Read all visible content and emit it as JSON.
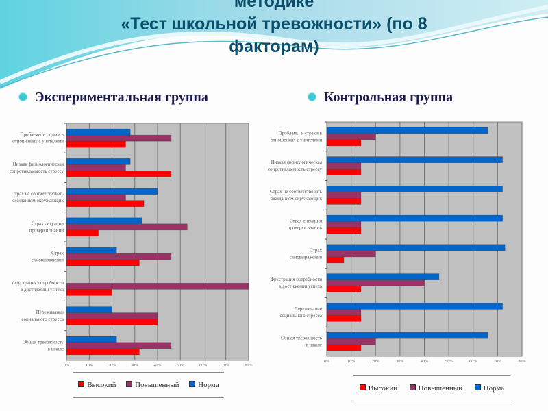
{
  "title_lines": [
    "методике",
    "«Тест школьной тревожности» (по 8",
    "факторам)"
  ],
  "groups": {
    "experimental": "Экспериментальная группа",
    "control": "Контрольная группа"
  },
  "colors": {
    "high": "#ff0000",
    "elevated": "#993366",
    "norm": "#0066cc",
    "plot_bg": "#c0c0c0",
    "accent": "#3cc9d6"
  },
  "chart_data": [
    {
      "type": "bar",
      "orientation": "horizontal",
      "title": "Экспериментальная группа",
      "categories": [
        "Проблемы и страхи в отношениях с учителями",
        "Низкая физиологическая сопротивляемость стрессу",
        "Страх не соответствовать ожиданиям окружающих",
        "Страх ситуации проверки знаний",
        "Страх самовыражения",
        "Фрустрация потребности в достижении успеха",
        "Переживание социального стресса",
        "Общая тревожность в школе"
      ],
      "series": [
        {
          "name": "Высокий",
          "color": "#ff0000",
          "values": [
            26,
            46,
            34,
            14,
            32,
            20,
            40,
            32
          ]
        },
        {
          "name": "Повышенный",
          "color": "#993366",
          "values": [
            46,
            26,
            26,
            53,
            46,
            80,
            40,
            46
          ]
        },
        {
          "name": "Норма",
          "color": "#0066cc",
          "values": [
            28,
            28,
            40,
            33,
            22,
            0,
            20,
            22
          ]
        }
      ],
      "xlim": [
        0,
        80
      ],
      "xticks": [
        "0%",
        "10%",
        "20%",
        "30%",
        "40%",
        "50%",
        "60%",
        "70%",
        "80%"
      ],
      "grid": true,
      "legend": "bottom"
    },
    {
      "type": "bar",
      "orientation": "horizontal",
      "title": "Контрольная группа",
      "categories": [
        "Проблемы и страхи в отношениях с учителями",
        "Низкая физиологическая сопротивляемость стрессу",
        "Страх не соответствовать ожиданиям окружающих",
        "Страх ситуации проверки знаний",
        "Страх самовыражения",
        "Фрустрация потребности в достижении успеха",
        "Переживание социального стресса",
        "Общая тревожность в школе"
      ],
      "series": [
        {
          "name": "Высокий",
          "color": "#ff0000",
          "values": [
            14,
            14,
            14,
            14,
            7,
            14,
            14,
            14
          ]
        },
        {
          "name": "Повышенный",
          "color": "#993366",
          "values": [
            20,
            14,
            14,
            14,
            20,
            40,
            14,
            20
          ]
        },
        {
          "name": "Норма",
          "color": "#0066cc",
          "values": [
            66,
            72,
            72,
            72,
            73,
            46,
            72,
            66
          ]
        }
      ],
      "xlim": [
        0,
        80
      ],
      "xticks": [
        "0%",
        "10%",
        "20%",
        "30%",
        "40%",
        "50%",
        "60%",
        "70%",
        "80%"
      ],
      "grid": true,
      "legend": "bottom"
    }
  ]
}
